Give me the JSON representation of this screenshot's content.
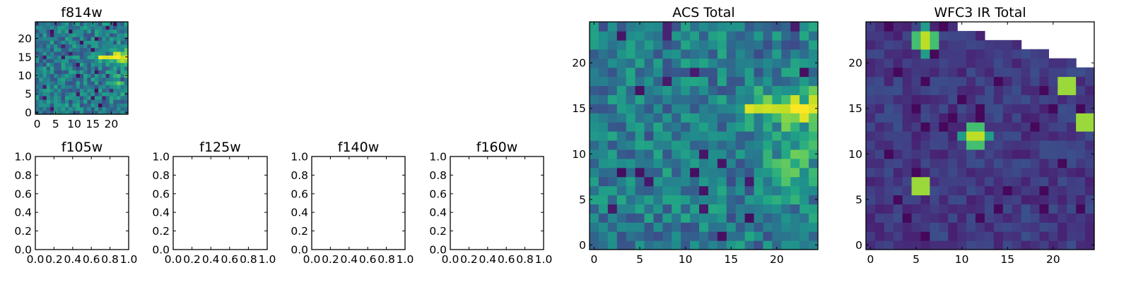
{
  "chart_data": [
    {
      "id": "f814w",
      "type": "heatmap",
      "title": "f814w",
      "grid_size": 25,
      "xlim": [
        -0.5,
        24.5
      ],
      "ylim": [
        -0.5,
        24.5
      ],
      "xticks": [
        0,
        5,
        10,
        15,
        20
      ],
      "yticks": [
        0,
        5,
        10,
        15,
        20
      ],
      "colormap": "viridis",
      "style": "acs",
      "seed": 7
    },
    {
      "id": "f105w",
      "type": "empty",
      "title": "f105w",
      "xlim": [
        0,
        1
      ],
      "ylim": [
        0,
        1
      ],
      "xticks": [
        "0.0",
        "0.2",
        "0.4",
        "0.6",
        "0.8",
        "1.0"
      ],
      "yticks": [
        "0.0",
        "0.2",
        "0.4",
        "0.6",
        "0.8",
        "1.0"
      ]
    },
    {
      "id": "f125w",
      "type": "empty",
      "title": "f125w",
      "xlim": [
        0,
        1
      ],
      "ylim": [
        0,
        1
      ],
      "xticks": [
        "0.0",
        "0.2",
        "0.4",
        "0.6",
        "0.8",
        "1.0"
      ],
      "yticks": [
        "0.0",
        "0.2",
        "0.4",
        "0.6",
        "0.8",
        "1.0"
      ]
    },
    {
      "id": "f140w",
      "type": "empty",
      "title": "f140w",
      "xlim": [
        0,
        1
      ],
      "ylim": [
        0,
        1
      ],
      "xticks": [
        "0.0",
        "0.2",
        "0.4",
        "0.6",
        "0.8",
        "1.0"
      ],
      "yticks": [
        "0.0",
        "0.2",
        "0.4",
        "0.6",
        "0.8",
        "1.0"
      ]
    },
    {
      "id": "f160w",
      "type": "empty",
      "title": "f160w",
      "xlim": [
        0,
        1
      ],
      "ylim": [
        0,
        1
      ],
      "xticks": [
        "0.0",
        "0.2",
        "0.4",
        "0.6",
        "0.8",
        "1.0"
      ],
      "yticks": [
        "0.0",
        "0.2",
        "0.4",
        "0.6",
        "0.8",
        "1.0"
      ]
    },
    {
      "id": "acs-total",
      "type": "heatmap",
      "title": "ACS Total",
      "grid_size": 25,
      "xlim": [
        -0.5,
        24.5
      ],
      "ylim": [
        -0.5,
        24.5
      ],
      "xticks": [
        0,
        5,
        10,
        15,
        20
      ],
      "yticks": [
        0,
        5,
        10,
        15,
        20
      ],
      "colormap": "viridis",
      "style": "acs",
      "seed": 11
    },
    {
      "id": "wfc3-ir-total",
      "type": "heatmap",
      "title": "WFC3 IR Total",
      "grid_size": 25,
      "xlim": [
        -0.5,
        24.5
      ],
      "ylim": [
        -0.5,
        24.5
      ],
      "xticks": [
        0,
        5,
        10,
        15,
        20
      ],
      "yticks": [
        0,
        5,
        10,
        15,
        20
      ],
      "colormap": "viridis",
      "style": "ir",
      "seed": 23,
      "bright_sources": [
        [
          5.5,
          6.5
        ],
        [
          11.5,
          12
        ],
        [
          6,
          22.5
        ],
        [
          21.5,
          17.5
        ],
        [
          23.5,
          13.5
        ]
      ],
      "masked_top_right": true
    }
  ]
}
